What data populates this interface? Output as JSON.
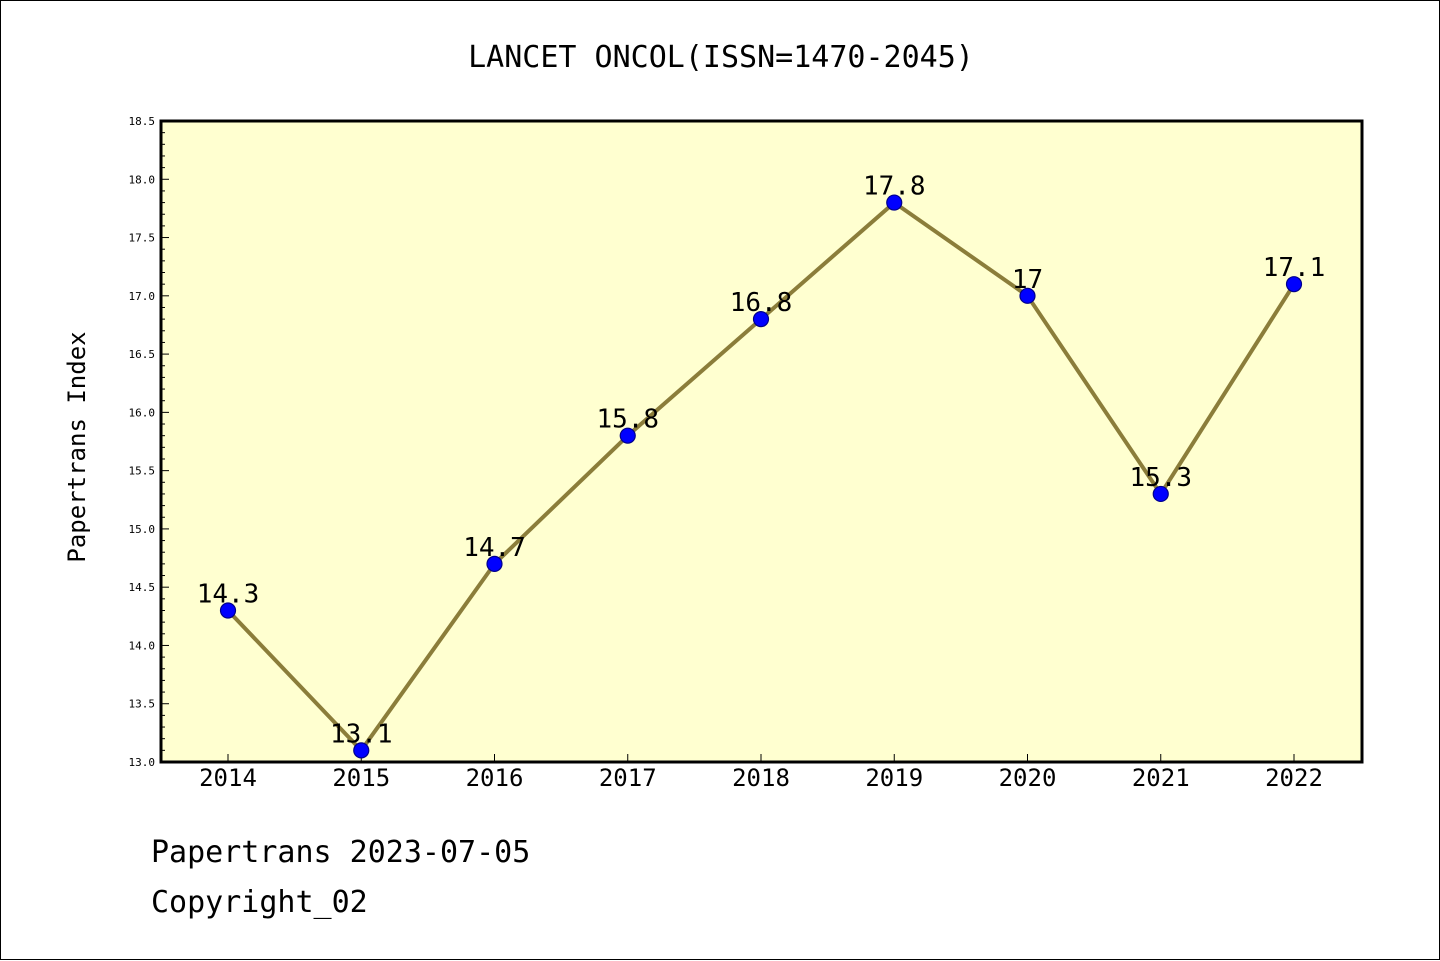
{
  "chart_data": {
    "type": "line",
    "title": "LANCET ONCOL(ISSN=1470-2045)",
    "xlabel": "",
    "ylabel": "Papertrans Index",
    "categories": [
      "2014",
      "2015",
      "2016",
      "2017",
      "2018",
      "2019",
      "2020",
      "2021",
      "2022"
    ],
    "series": [
      {
        "values": [
          14.3,
          13.1,
          14.7,
          15.8,
          16.8,
          17.8,
          17.0,
          15.3,
          17.1
        ],
        "labels": [
          "14.3",
          "13.1",
          "14.7",
          "15.8",
          "16.8",
          "17.8",
          "17",
          "15.3",
          "17.1"
        ]
      }
    ],
    "ylim": [
      13.0,
      18.5
    ],
    "yticks": [
      "13.0",
      "13.5",
      "14.0",
      "14.5",
      "15.0",
      "15.5",
      "16.0",
      "16.5",
      "17.0",
      "17.5",
      "18.0",
      "18.5"
    ],
    "grid": false,
    "legend": "none",
    "colors": {
      "plot_background": "#ffffd0",
      "line": "#8b7d3a",
      "marker_fill": "#0000ff",
      "marker_edge": "#00008b"
    }
  },
  "footer": {
    "line1": "Papertrans 2023-07-05",
    "line2": "Copyright_02"
  }
}
